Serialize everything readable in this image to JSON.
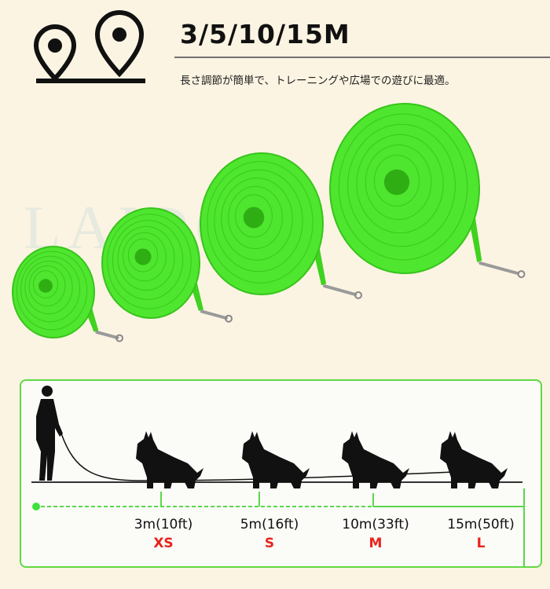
{
  "header": {
    "icon": "location-pin-icon",
    "title": "3/5/10/15M",
    "subtitle": "長さ調節が簡単で、トレーニングや広場での遊びに最適。"
  },
  "watermark": "LAIDOG ®",
  "colors": {
    "leash_green": "#4ee62e",
    "size_red": "#e8231b",
    "panel_border": "#62d846",
    "background": "#fcf4e2"
  },
  "products": [
    {
      "size": "XS",
      "length": "3m(10ft)"
    },
    {
      "size": "S",
      "length": "5m(16ft)"
    },
    {
      "size": "M",
      "length": "10m(33ft)"
    },
    {
      "size": "L",
      "length": "15m(50ft)"
    }
  ]
}
